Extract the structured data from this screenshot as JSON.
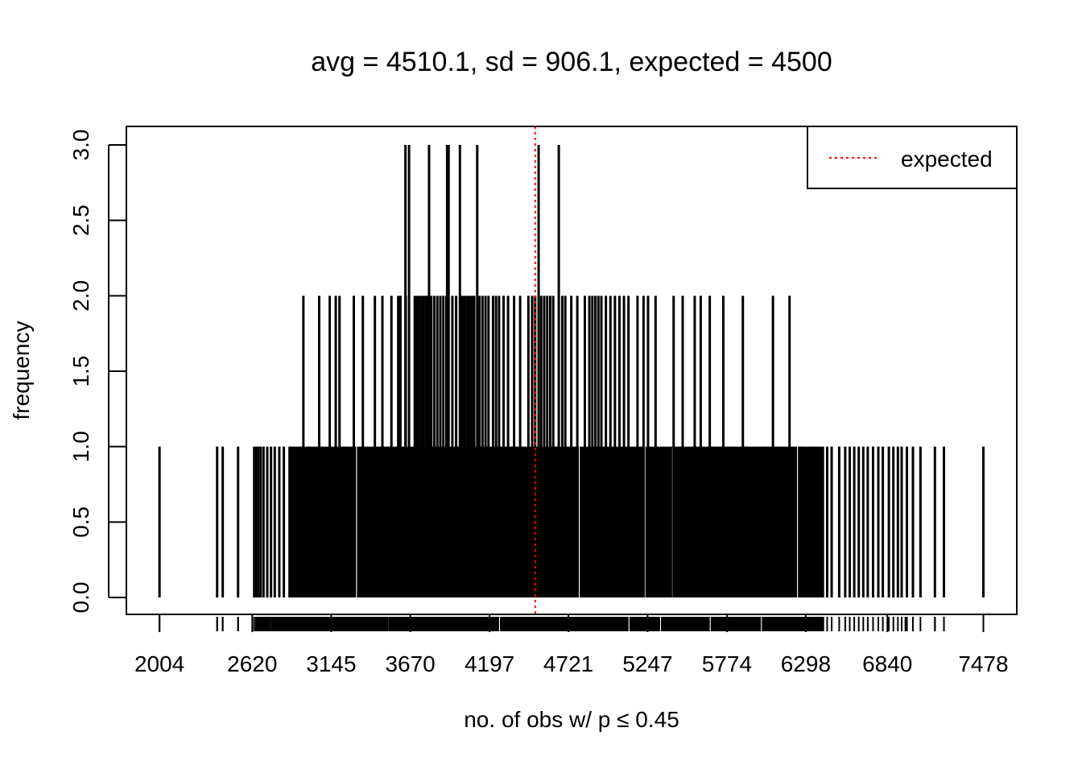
{
  "chart_data": {
    "type": "bar",
    "title": "avg = 4510.1, sd = 906.1, expected = 4500",
    "xlabel": "no. of obs w/ p ≤ 0.45",
    "ylabel": "frequency",
    "xlim": [
      1784,
      7700
    ],
    "ylim": [
      0,
      3
    ],
    "x_ticks": [
      2004,
      2620,
      3145,
      3670,
      4197,
      4721,
      5247,
      5774,
      6298,
      6840,
      7478
    ],
    "x_tick_labels": [
      "2004",
      "2620",
      "3145",
      "3670",
      "4197",
      "4721",
      "5247",
      "5774",
      "6298",
      "6840",
      "7478"
    ],
    "y_ticks": [
      0,
      0.5,
      1,
      1.5,
      2,
      2.5,
      3
    ],
    "y_tick_labels": [
      "0.0",
      "0.5",
      "1.0",
      "1.5",
      "2.0",
      "2.5",
      "3.0"
    ],
    "expected": 4500,
    "legend": {
      "position": "top-right",
      "entries": [
        {
          "label": "expected",
          "color": "#ff0000",
          "style": "dotted"
        }
      ]
    },
    "colors": {
      "bars": "#000000",
      "expected_line": "#ff0000"
    },
    "dense_range": [
      2860,
      6420
    ],
    "bars_freq3": [
      3638,
      3662,
      3795,
      3915,
      3925,
      4000,
      4115,
      4523,
      4657
    ],
    "bars_freq2": [
      2960,
      3065,
      3135,
      3175,
      3200,
      3295,
      3355,
      3435,
      3485,
      3545,
      3590,
      3605,
      3640,
      3700,
      3715,
      3730,
      3745,
      3760,
      3775,
      3790,
      3810,
      3830,
      3850,
      3870,
      3890,
      3910,
      3950,
      3975,
      4005,
      4020,
      4035,
      4050,
      4065,
      4080,
      4095,
      4130,
      4150,
      4170,
      4190,
      4220,
      4240,
      4260,
      4290,
      4320,
      4360,
      4400,
      4455,
      4480,
      4500,
      4540,
      4560,
      4580,
      4600,
      4620,
      4680,
      4700,
      4740,
      4780,
      4830,
      4860,
      4880,
      4900,
      4920,
      4940,
      4970,
      5000,
      5030,
      5060,
      5090,
      5120,
      5180,
      5220,
      5250,
      5300,
      5420,
      5480,
      5560,
      5600,
      5660,
      5750,
      5880,
      6080,
      6190
    ],
    "bars_freq1": [
      2004,
      2387,
      2424,
      2526,
      2633,
      2645,
      2660,
      2676,
      2695,
      2720,
      2745,
      2770,
      2800,
      2830,
      2880,
      2940,
      3000,
      3080,
      3230,
      3520,
      4640,
      5256,
      5460,
      5686,
      5760,
      5800,
      5900,
      6020,
      6110,
      6260,
      6340,
      6440,
      6470,
      6520,
      6560,
      6590,
      6620,
      6650,
      6680,
      6710,
      6745,
      6780,
      6810,
      6850,
      6880,
      6910,
      6935,
      6970,
      7010,
      7060,
      7156,
      7216,
      7478
    ],
    "rug_singles": [
      2004,
      2387,
      2424,
      2526,
      6960,
      7156,
      7216,
      7478
    ]
  }
}
